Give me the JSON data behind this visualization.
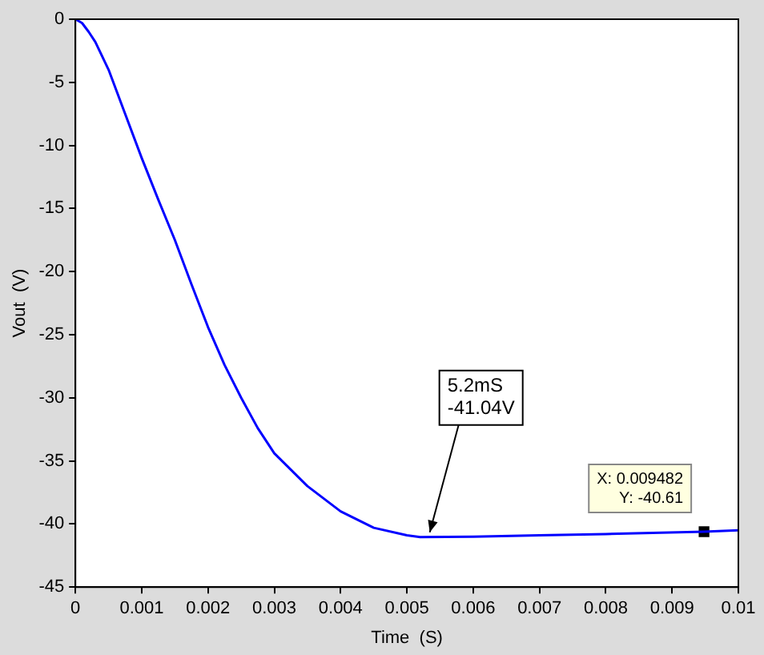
{
  "chart_data": {
    "type": "line",
    "xlabel": "Time  (S)",
    "ylabel": "Vout  (V)",
    "xlim": [
      0,
      0.01
    ],
    "xticks": [
      0,
      0.001,
      0.002,
      0.003,
      0.004,
      0.005,
      0.006,
      0.007,
      0.008,
      0.009,
      0.01
    ],
    "ylim": [
      -45,
      0
    ],
    "yticks": [
      -45,
      -40,
      -35,
      -30,
      -25,
      -20,
      -15,
      -10,
      -5,
      0
    ],
    "grid": false,
    "legend": false,
    "line_style": "solid",
    "series": [
      {
        "color": "#0000ff",
        "marker": "none",
        "x": [
          0,
          0.0001,
          0.0002,
          0.0003,
          0.0005,
          0.00075,
          0.001,
          0.00125,
          0.0015,
          0.00175,
          0.002,
          0.00225,
          0.0025,
          0.00275,
          0.003,
          0.0035,
          0.004,
          0.0045,
          0.005,
          0.0052,
          0.006,
          0.007,
          0.008,
          0.009482,
          0.01
        ],
        "values": [
          0,
          -0.3,
          -1,
          -1.8,
          -4,
          -7.5,
          -11,
          -14.3,
          -17.5,
          -21,
          -24.4,
          -27.4,
          -30,
          -32.4,
          -34.4,
          -37,
          -39,
          -40.3,
          -40.9,
          -41.04,
          -41,
          -40.9,
          -40.8,
          -40.61,
          -40.5
        ]
      },
      {
        "type": "scatter",
        "color": "#000000",
        "marker": "square",
        "x": [
          0.009482
        ],
        "values": [
          -40.61
        ]
      }
    ],
    "annotations": [
      {
        "text": "5.2mS\n-41.04V",
        "x": 0.0052,
        "y": -41.04
      },
      {
        "text": "X: 0.009482\nY: -40.61",
        "x": 0.009482,
        "y": -40.61
      }
    ]
  }
}
